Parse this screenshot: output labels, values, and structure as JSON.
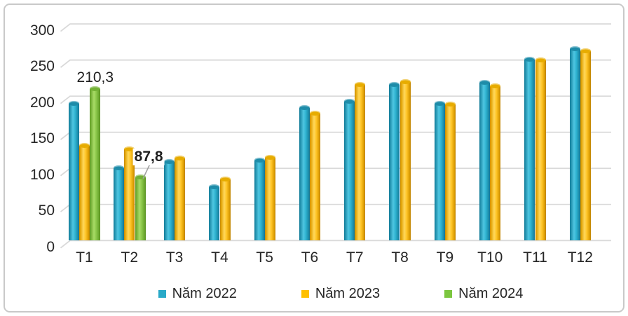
{
  "chart_data": {
    "type": "bar",
    "style": "3d-cylinder",
    "title": "",
    "categories": [
      "T1",
      "T2",
      "T3",
      "T4",
      "T5",
      "T6",
      "T7",
      "T8",
      "T9",
      "T10",
      "T11",
      "T12"
    ],
    "series": [
      {
        "name": "Năm 2022",
        "color": "#29A9C8",
        "values": [
          190,
          101,
          109,
          75,
          111,
          184,
          193,
          216,
          190,
          219,
          251,
          266
        ]
      },
      {
        "name": "Năm 2023",
        "color": "#FFC000",
        "values": [
          132,
          127,
          114,
          85,
          115,
          176,
          216,
          220,
          189,
          214,
          250,
          263
        ]
      },
      {
        "name": "Năm 2024",
        "color": "#7CC63F",
        "values": [
          210.3,
          87.8,
          null,
          null,
          null,
          null,
          null,
          null,
          null,
          null,
          null,
          null
        ]
      }
    ],
    "annotations": [
      {
        "text": "210,3",
        "series_index": 2,
        "category_index": 0,
        "leader_line": false
      },
      {
        "text": "87,8",
        "series_index": 2,
        "category_index": 1,
        "leader_line": true
      }
    ],
    "ylim": [
      0,
      300
    ],
    "ytick_step": 50,
    "yticks": [
      "0",
      "50",
      "100",
      "150",
      "200",
      "250",
      "300"
    ],
    "xlabel": "",
    "ylabel": "",
    "grid": true,
    "legend_position": "bottom",
    "colors": {
      "gridline": "#D9D9D9",
      "text": "#262626",
      "frame_border": "#C9C9C9",
      "leader_line": "#A0A0A0",
      "background": "#FFFFFF"
    }
  }
}
